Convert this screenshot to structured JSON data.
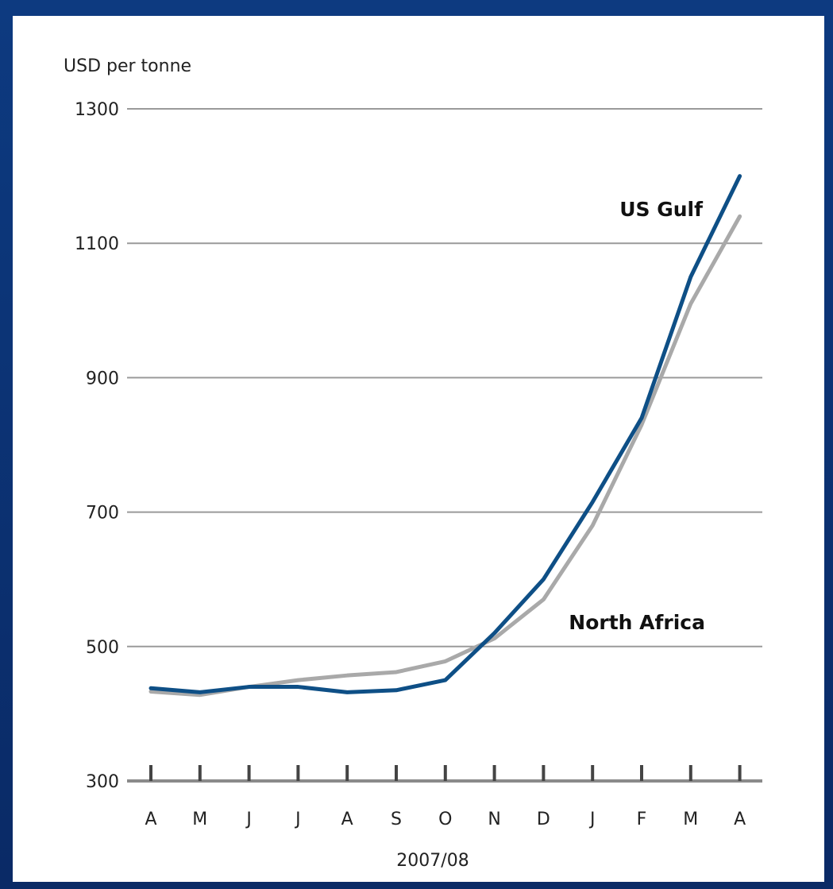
{
  "chart_data": {
    "type": "line",
    "ylabel": "USD per tonne",
    "xlabel": "2007/08",
    "ylim": [
      300,
      1300
    ],
    "yticks": [
      300,
      500,
      700,
      900,
      1100,
      1300
    ],
    "categories": [
      "A",
      "M",
      "J",
      "J",
      "A",
      "S",
      "O",
      "N",
      "D",
      "J",
      "F",
      "M",
      "A"
    ],
    "grid": true,
    "series": [
      {
        "name": "US Gulf",
        "color": "#0e4f86",
        "values": [
          438,
          432,
          440,
          440,
          432,
          435,
          450,
          520,
          600,
          715,
          840,
          1050,
          1200
        ]
      },
      {
        "name": "North Africa",
        "color": "#a9a9a9",
        "values": [
          433,
          428,
          440,
          450,
          457,
          462,
          478,
          512,
          570,
          680,
          830,
          1010,
          1140
        ]
      }
    ]
  },
  "colors": {
    "frame": "#0c2f6e",
    "panel": "#ffffff",
    "gridline": "#9a9a9a"
  }
}
